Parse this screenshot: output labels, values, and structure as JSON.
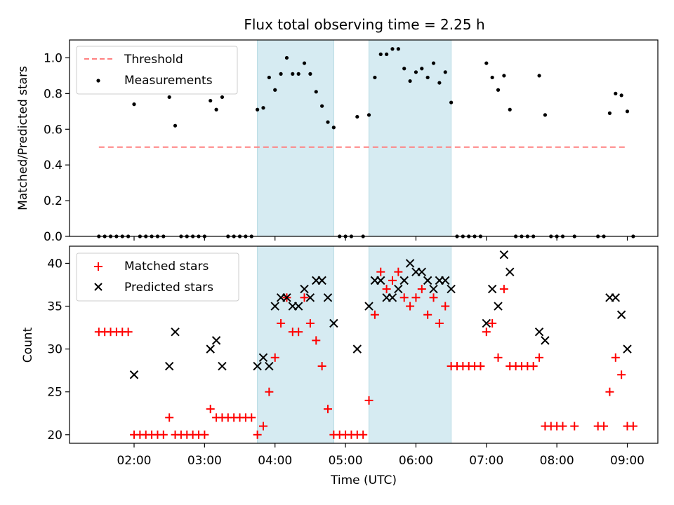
{
  "chart_data": [
    {
      "type": "scatter",
      "title": "Flux total observing time = 2.25 h",
      "xlabel": "",
      "ylabel": "Matched/Predicted stars",
      "xlim": [
        "01:05",
        "09:26"
      ],
      "ylim": [
        0,
        1.1
      ],
      "yticks": [
        "0.0",
        "0.2",
        "0.4",
        "0.6",
        "0.8",
        "1.0"
      ],
      "grid": false,
      "legend_position": "upper left",
      "shaded_intervals": [
        [
          "03:45",
          "04:50"
        ],
        [
          "05:20",
          "06:30"
        ]
      ],
      "threshold": {
        "name": "Threshold",
        "y": 0.5,
        "x_range": [
          "01:30",
          "09:00"
        ],
        "color": "#ff8080",
        "style": "dashed"
      },
      "series": [
        {
          "name": "Measurements",
          "color": "#000000",
          "points": [
            [
              "01:30",
              0
            ],
            [
              "01:35",
              0
            ],
            [
              "01:40",
              0
            ],
            [
              "01:45",
              0
            ],
            [
              "01:50",
              0
            ],
            [
              "01:55",
              0
            ],
            [
              "02:00",
              0.74
            ],
            [
              "02:05",
              0
            ],
            [
              "02:10",
              0
            ],
            [
              "02:15",
              0
            ],
            [
              "02:20",
              0
            ],
            [
              "02:25",
              0
            ],
            [
              "02:30",
              0.78
            ],
            [
              "02:35",
              0.62
            ],
            [
              "02:40",
              0
            ],
            [
              "02:45",
              0
            ],
            [
              "02:50",
              0
            ],
            [
              "02:55",
              0
            ],
            [
              "03:00",
              0
            ],
            [
              "03:05",
              0.76
            ],
            [
              "03:10",
              0.71
            ],
            [
              "03:15",
              0.78
            ],
            [
              "03:20",
              0
            ],
            [
              "03:25",
              0
            ],
            [
              "03:30",
              0
            ],
            [
              "03:35",
              0
            ],
            [
              "03:40",
              0
            ],
            [
              "03:45",
              0.71
            ],
            [
              "03:50",
              0.72
            ],
            [
              "03:55",
              0.89
            ],
            [
              "04:00",
              0.82
            ],
            [
              "04:05",
              0.91
            ],
            [
              "04:10",
              1.0
            ],
            [
              "04:15",
              0.91
            ],
            [
              "04:20",
              0.91
            ],
            [
              "04:25",
              0.97
            ],
            [
              "04:30",
              0.91
            ],
            [
              "04:35",
              0.81
            ],
            [
              "04:40",
              0.73
            ],
            [
              "04:45",
              0.64
            ],
            [
              "04:50",
              0.61
            ],
            [
              "04:55",
              0
            ],
            [
              "05:00",
              0
            ],
            [
              "05:05",
              0
            ],
            [
              "05:10",
              0.67
            ],
            [
              "05:15",
              0
            ],
            [
              "05:20",
              0.68
            ],
            [
              "05:25",
              0.89
            ],
            [
              "05:30",
              1.02
            ],
            [
              "05:35",
              1.02
            ],
            [
              "05:40",
              1.05
            ],
            [
              "05:45",
              1.05
            ],
            [
              "05:50",
              0.94
            ],
            [
              "05:55",
              0.87
            ],
            [
              "06:00",
              0.92
            ],
            [
              "06:05",
              0.94
            ],
            [
              "06:10",
              0.89
            ],
            [
              "06:15",
              0.97
            ],
            [
              "06:20",
              0.86
            ],
            [
              "06:25",
              0.92
            ],
            [
              "06:30",
              0.75
            ],
            [
              "06:35",
              0
            ],
            [
              "06:40",
              0
            ],
            [
              "06:45",
              0
            ],
            [
              "06:50",
              0
            ],
            [
              "06:55",
              0
            ],
            [
              "07:00",
              0.97
            ],
            [
              "07:05",
              0.89
            ],
            [
              "07:10",
              0.82
            ],
            [
              "07:15",
              0.9
            ],
            [
              "07:20",
              0.71
            ],
            [
              "07:25",
              0
            ],
            [
              "07:30",
              0
            ],
            [
              "07:35",
              0
            ],
            [
              "07:40",
              0
            ],
            [
              "07:45",
              0.9
            ],
            [
              "07:50",
              0.68
            ],
            [
              "07:55",
              0
            ],
            [
              "08:00",
              0
            ],
            [
              "08:05",
              0
            ],
            [
              "08:15",
              0
            ],
            [
              "08:35",
              0
            ],
            [
              "08:40",
              0
            ],
            [
              "08:45",
              0.69
            ],
            [
              "08:50",
              0.8
            ],
            [
              "08:55",
              0.79
            ],
            [
              "09:00",
              0.7
            ],
            [
              "09:05",
              0
            ]
          ]
        }
      ]
    },
    {
      "type": "scatter",
      "title": "",
      "xlabel": "Time (UTC)",
      "ylabel": "Count",
      "xlim": [
        "01:05",
        "09:26"
      ],
      "ylim": [
        19,
        42
      ],
      "yticks": [
        "20",
        "25",
        "30",
        "35",
        "40"
      ],
      "xticks": [
        "02:00",
        "03:00",
        "04:00",
        "05:00",
        "06:00",
        "07:00",
        "08:00",
        "09:00"
      ],
      "grid": false,
      "legend_position": "upper left",
      "shaded_intervals": [
        [
          "03:45",
          "04:50"
        ],
        [
          "05:20",
          "06:30"
        ]
      ],
      "series": [
        {
          "name": "Matched stars",
          "marker": "+",
          "color": "#ff0000",
          "points": [
            [
              "01:30",
              32
            ],
            [
              "01:35",
              32
            ],
            [
              "01:40",
              32
            ],
            [
              "01:45",
              32
            ],
            [
              "01:50",
              32
            ],
            [
              "01:55",
              32
            ],
            [
              "02:00",
              20
            ],
            [
              "02:05",
              20
            ],
            [
              "02:10",
              20
            ],
            [
              "02:15",
              20
            ],
            [
              "02:20",
              20
            ],
            [
              "02:25",
              20
            ],
            [
              "02:30",
              22
            ],
            [
              "02:35",
              20
            ],
            [
              "02:40",
              20
            ],
            [
              "02:45",
              20
            ],
            [
              "02:50",
              20
            ],
            [
              "02:55",
              20
            ],
            [
              "03:00",
              20
            ],
            [
              "03:05",
              23
            ],
            [
              "03:10",
              22
            ],
            [
              "03:15",
              22
            ],
            [
              "03:20",
              22
            ],
            [
              "03:25",
              22
            ],
            [
              "03:30",
              22
            ],
            [
              "03:35",
              22
            ],
            [
              "03:40",
              22
            ],
            [
              "03:45",
              20
            ],
            [
              "03:50",
              21
            ],
            [
              "03:55",
              25
            ],
            [
              "04:00",
              29
            ],
            [
              "04:05",
              33
            ],
            [
              "04:10",
              36
            ],
            [
              "04:15",
              32
            ],
            [
              "04:20",
              32
            ],
            [
              "04:25",
              36
            ],
            [
              "04:30",
              33
            ],
            [
              "04:35",
              31
            ],
            [
              "04:40",
              28
            ],
            [
              "04:45",
              23
            ],
            [
              "04:50",
              20
            ],
            [
              "04:55",
              20
            ],
            [
              "05:00",
              20
            ],
            [
              "05:05",
              20
            ],
            [
              "05:10",
              20
            ],
            [
              "05:15",
              20
            ],
            [
              "05:20",
              24
            ],
            [
              "05:25",
              34
            ],
            [
              "05:30",
              39
            ],
            [
              "05:35",
              37
            ],
            [
              "05:40",
              38
            ],
            [
              "05:45",
              39
            ],
            [
              "05:50",
              36
            ],
            [
              "05:55",
              35
            ],
            [
              "06:00",
              36
            ],
            [
              "06:05",
              37
            ],
            [
              "06:10",
              34
            ],
            [
              "06:15",
              36
            ],
            [
              "06:20",
              33
            ],
            [
              "06:25",
              35
            ],
            [
              "06:30",
              28
            ],
            [
              "06:35",
              28
            ],
            [
              "06:40",
              28
            ],
            [
              "06:45",
              28
            ],
            [
              "06:50",
              28
            ],
            [
              "06:55",
              28
            ],
            [
              "07:00",
              32
            ],
            [
              "07:05",
              33
            ],
            [
              "07:10",
              29
            ],
            [
              "07:15",
              37
            ],
            [
              "07:20",
              28
            ],
            [
              "07:25",
              28
            ],
            [
              "07:30",
              28
            ],
            [
              "07:35",
              28
            ],
            [
              "07:40",
              28
            ],
            [
              "07:45",
              29
            ],
            [
              "07:50",
              21
            ],
            [
              "07:55",
              21
            ],
            [
              "08:00",
              21
            ],
            [
              "08:05",
              21
            ],
            [
              "08:15",
              21
            ],
            [
              "08:35",
              21
            ],
            [
              "08:40",
              21
            ],
            [
              "08:45",
              25
            ],
            [
              "08:50",
              29
            ],
            [
              "08:55",
              27
            ],
            [
              "09:00",
              21
            ],
            [
              "09:05",
              21
            ]
          ]
        },
        {
          "name": "Predicted stars",
          "marker": "x",
          "color": "#000000",
          "points": [
            [
              "02:00",
              27
            ],
            [
              "02:30",
              28
            ],
            [
              "02:35",
              32
            ],
            [
              "03:05",
              30
            ],
            [
              "03:10",
              31
            ],
            [
              "03:15",
              28
            ],
            [
              "03:45",
              28
            ],
            [
              "03:50",
              29
            ],
            [
              "03:55",
              28
            ],
            [
              "04:00",
              35
            ],
            [
              "04:05",
              36
            ],
            [
              "04:10",
              36
            ],
            [
              "04:15",
              35
            ],
            [
              "04:20",
              35
            ],
            [
              "04:25",
              37
            ],
            [
              "04:30",
              36
            ],
            [
              "04:35",
              38
            ],
            [
              "04:40",
              38
            ],
            [
              "04:45",
              36
            ],
            [
              "04:50",
              33
            ],
            [
              "05:10",
              30
            ],
            [
              "05:20",
              35
            ],
            [
              "05:25",
              38
            ],
            [
              "05:30",
              38
            ],
            [
              "05:35",
              36
            ],
            [
              "05:40",
              36
            ],
            [
              "05:45",
              37
            ],
            [
              "05:50",
              38
            ],
            [
              "05:55",
              40
            ],
            [
              "06:00",
              39
            ],
            [
              "06:05",
              39
            ],
            [
              "06:10",
              38
            ],
            [
              "06:15",
              37
            ],
            [
              "06:20",
              38
            ],
            [
              "06:25",
              38
            ],
            [
              "06:30",
              37
            ],
            [
              "07:00",
              33
            ],
            [
              "07:05",
              37
            ],
            [
              "07:10",
              35
            ],
            [
              "07:15",
              41
            ],
            [
              "07:20",
              39
            ],
            [
              "07:45",
              32
            ],
            [
              "07:50",
              31
            ],
            [
              "08:45",
              36
            ],
            [
              "08:50",
              36
            ],
            [
              "08:55",
              34
            ],
            [
              "09:00",
              30
            ]
          ]
        }
      ]
    }
  ]
}
